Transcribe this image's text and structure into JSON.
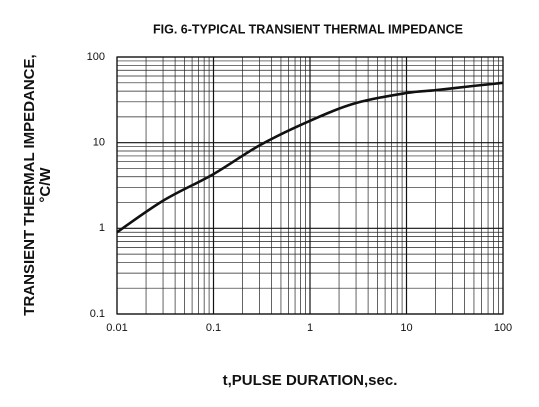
{
  "chart_data": {
    "type": "line",
    "title": "FIG. 6-TYPICAL TRANSIENT THERMAL IMPEDANCE",
    "y_label": [
      "TRANSIENT THERMAL IMPEDANCE,",
      "°C/W"
    ],
    "x_label": "t,PULSE DURATION,sec.",
    "log_x": true,
    "log_y": true,
    "grid": true,
    "xlim": [
      0.01,
      100
    ],
    "ylim": [
      0.1,
      100
    ],
    "xticks": [
      0.01,
      0.1,
      1,
      10,
      100
    ],
    "yticks": [
      0.1,
      1,
      10,
      100
    ],
    "x_minor_ticks": [
      0.02,
      0.03,
      0.04,
      0.05,
      0.06,
      0.07,
      0.08,
      0.09,
      0.2,
      0.3,
      0.4,
      0.5,
      0.6,
      0.7,
      0.8,
      0.9,
      2,
      3,
      4,
      5,
      6,
      7,
      8,
      9,
      20,
      30,
      40,
      50,
      60,
      70,
      80,
      90
    ],
    "y_minor_ticks": [
      0.2,
      0.3,
      0.4,
      0.5,
      0.6,
      0.7,
      0.8,
      0.9,
      2,
      3,
      4,
      5,
      6,
      7,
      8,
      9,
      20,
      30,
      40,
      50,
      60,
      70,
      80,
      90
    ],
    "series": [
      {
        "color": "#111111",
        "x": [
          0.01,
          0.03,
          0.1,
          0.3,
          1,
          3,
          10,
          20,
          50,
          100
        ],
        "values": [
          0.9,
          2.1,
          4.3,
          9.3,
          18,
          29,
          38,
          41,
          46,
          50
        ]
      }
    ]
  }
}
